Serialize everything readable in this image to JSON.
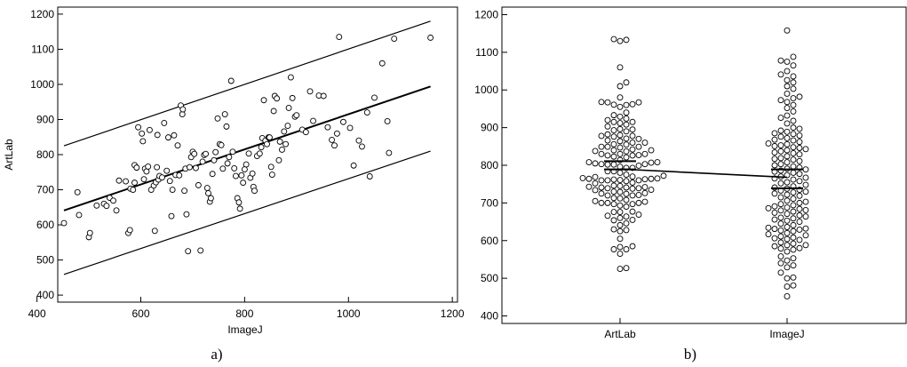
{
  "chart_data": [
    {
      "type": "scatter",
      "panel_label": "a)",
      "xlabel": "ImageJ",
      "ylabel": "ArtLab",
      "xlim": [
        440,
        1210
      ],
      "ylim": [
        380,
        1220
      ],
      "xticks": [
        "400",
        "600",
        "800",
        "1000",
        "1200"
      ],
      "yticks": [
        "400",
        "500",
        "600",
        "700",
        "800",
        "900",
        "1000",
        "1100",
        "1200"
      ],
      "grid": false,
      "series": [
        {
          "mark": "open-circle",
          "points": [
            [
              452,
              605
            ],
            [
              478,
              693
            ],
            [
              481,
              628
            ],
            [
              500,
              565
            ],
            [
              502,
              577
            ],
            [
              515,
              655
            ],
            [
              529,
              660
            ],
            [
              534,
              654
            ],
            [
              540,
              677
            ],
            [
              547,
              669
            ],
            [
              553,
              641
            ],
            [
              558,
              726
            ],
            [
              571,
              724
            ],
            [
              576,
              577
            ],
            [
              579,
              585
            ],
            [
              580,
              703
            ],
            [
              585,
              700
            ],
            [
              588,
              720
            ],
            [
              588,
              770
            ],
            [
              592,
              763
            ],
            [
              595,
              878
            ],
            [
              602,
              860
            ],
            [
              604,
              838
            ],
            [
              606,
              730
            ],
            [
              608,
              760
            ],
            [
              611,
              752
            ],
            [
              614,
              766
            ],
            [
              617,
              870
            ],
            [
              620,
              700
            ],
            [
              625,
              712
            ],
            [
              627,
              583
            ],
            [
              629,
              721
            ],
            [
              631,
              764
            ],
            [
              632,
              856
            ],
            [
              634,
              729
            ],
            [
              636,
              739
            ],
            [
              641,
              735
            ],
            [
              645,
              890
            ],
            [
              650,
              754
            ],
            [
              653,
              849
            ],
            [
              656,
              725
            ],
            [
              659,
              625
            ],
            [
              661,
              700
            ],
            [
              664,
              855
            ],
            [
              667,
              742
            ],
            [
              671,
              826
            ],
            [
              674,
              741
            ],
            [
              677,
              940
            ],
            [
              680,
              915
            ],
            [
              681,
              929
            ],
            [
              684,
              697
            ],
            [
              686,
              760
            ],
            [
              688,
              630
            ],
            [
              691,
              525
            ],
            [
              694,
              764
            ],
            [
              697,
              793
            ],
            [
              700,
              808
            ],
            [
              703,
              802
            ],
            [
              706,
              762
            ],
            [
              711,
              713
            ],
            [
              715,
              527
            ],
            [
              719,
              780
            ],
            [
              722,
              799
            ],
            [
              725,
              802
            ],
            [
              728,
              705
            ],
            [
              730,
              690
            ],
            [
              733,
              666
            ],
            [
              735,
              676
            ],
            [
              738,
              745
            ],
            [
              741,
              784
            ],
            [
              744,
              807
            ],
            [
              748,
              903
            ],
            [
              752,
              830
            ],
            [
              755,
              827
            ],
            [
              758,
              760
            ],
            [
              762,
              915
            ],
            [
              765,
              880
            ],
            [
              767,
              775
            ],
            [
              770,
              793
            ],
            [
              774,
              1010
            ],
            [
              777,
              808
            ],
            [
              780,
              761
            ],
            [
              783,
              739
            ],
            [
              786,
              676
            ],
            [
              789,
              664
            ],
            [
              791,
              646
            ],
            [
              794,
              741
            ],
            [
              797,
              720
            ],
            [
              800,
              758
            ],
            [
              803,
              772
            ],
            [
              808,
              803
            ],
            [
              811,
              734
            ],
            [
              815,
              746
            ],
            [
              817,
              708
            ],
            [
              819,
              697
            ],
            [
              824,
              796
            ],
            [
              829,
              803
            ],
            [
              832,
              821
            ],
            [
              834,
              847
            ],
            [
              837,
              955
            ],
            [
              840,
              840
            ],
            [
              843,
              830
            ],
            [
              846,
              849
            ],
            [
              848,
              849
            ],
            [
              851,
              765
            ],
            [
              853,
              743
            ],
            [
              856,
              924
            ],
            [
              858,
              967
            ],
            [
              862,
              960
            ],
            [
              866,
              784
            ],
            [
              868,
              837
            ],
            [
              872,
              814
            ],
            [
              876,
              866
            ],
            [
              879,
              830
            ],
            [
              883,
              882
            ],
            [
              885,
              933
            ],
            [
              889,
              1020
            ],
            [
              892,
              961
            ],
            [
              897,
              908
            ],
            [
              900,
              912
            ],
            [
              911,
              871
            ],
            [
              918,
              864
            ],
            [
              926,
              980
            ],
            [
              932,
              896
            ],
            [
              943,
              968
            ],
            [
              952,
              967
            ],
            [
              960,
              878
            ],
            [
              968,
              842
            ],
            [
              973,
              826
            ],
            [
              978,
              860
            ],
            [
              982,
              1135
            ],
            [
              990,
              893
            ],
            [
              1003,
              876
            ],
            [
              1010,
              769
            ],
            [
              1020,
              840
            ],
            [
              1026,
              823
            ],
            [
              1036,
              920
            ],
            [
              1041,
              738
            ],
            [
              1050,
              962
            ],
            [
              1065,
              1060
            ],
            [
              1075,
              895
            ],
            [
              1078,
              805
            ],
            [
              1088,
              1130
            ],
            [
              1158,
              1133
            ]
          ]
        }
      ],
      "lines": [
        {
          "name": "fit",
          "points": [
            [
              452,
              641
            ],
            [
              1158,
              994
            ]
          ]
        },
        {
          "name": "upper",
          "points": [
            [
              452,
              825
            ],
            [
              1158,
              1180
            ]
          ]
        },
        {
          "name": "lower",
          "points": [
            [
              452,
              459
            ],
            [
              1158,
              810
            ]
          ]
        }
      ]
    },
    {
      "type": "scatter",
      "panel_label": "b)",
      "categories": [
        "ArtLab",
        "ImageJ"
      ],
      "ylim": [
        380,
        1220
      ],
      "yticks": [
        "400",
        "500",
        "600",
        "700",
        "800",
        "900",
        "1000",
        "1100",
        "1200"
      ],
      "grid": false,
      "summary": {
        "means": [
          790,
          768
        ],
        "ci_bars": [
          [
            789,
            811
          ],
          [
            739,
            789
          ]
        ]
      }
    }
  ]
}
